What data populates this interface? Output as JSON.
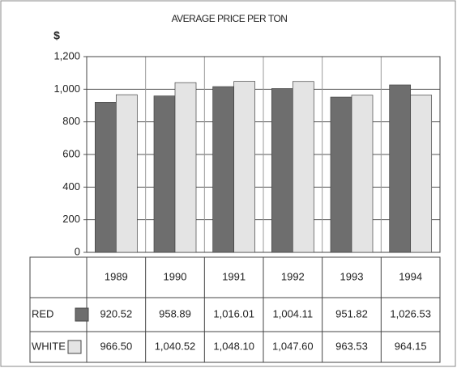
{
  "chart_data": {
    "type": "bar",
    "title": "AVERAGE PRICE PER TON",
    "ylabel": "$",
    "categories": [
      "1989",
      "1990",
      "1991",
      "1992",
      "1993",
      "1994"
    ],
    "series": [
      {
        "name": "RED",
        "color": "#6e6e6e",
        "values": [
          920.52,
          958.89,
          1016.01,
          1004.11,
          951.82,
          1026.53
        ],
        "value_labels": [
          "920.52",
          "958.89",
          "1,016.01",
          "1,004.11",
          "951.82",
          "1,026.53"
        ]
      },
      {
        "name": "WHITE",
        "color": "#e4e4e4",
        "values": [
          966.5,
          1040.52,
          1048.1,
          1047.6,
          963.53,
          964.15
        ],
        "value_labels": [
          "966.50",
          "1,040.52",
          "1,048.10",
          "1,047.60",
          "963.53",
          "964.15"
        ]
      }
    ],
    "ylim": [
      0,
      1200
    ],
    "yticks": [
      0,
      200,
      400,
      600,
      800,
      {
        "value": 1000,
        "label": "1,000"
      },
      {
        "value": 1200,
        "label": "1,200"
      }
    ],
    "grid": true
  }
}
